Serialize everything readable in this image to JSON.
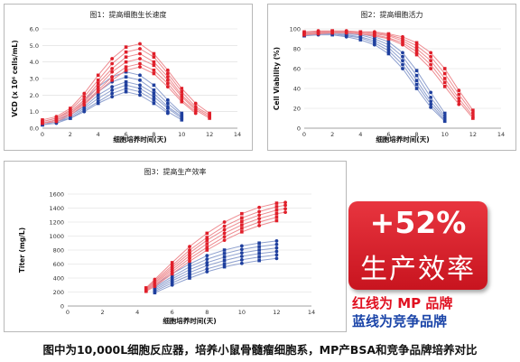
{
  "colors": {
    "red": "#e01f2a",
    "blue": "#1f3f9e",
    "red_line": "#ee8a8f",
    "blue_line": "#8ea0cf"
  },
  "chart_data": [
    {
      "type": "line",
      "title": "图1：提高细胞生长速度",
      "xlabel": "细胞培养时间(天)",
      "ylabel": "VCD (x 10⁶ cells/mL)",
      "xlim": [
        0,
        14
      ],
      "ylim": [
        0,
        6
      ],
      "xticks": [
        "0",
        "2",
        "4",
        "6",
        "8",
        "10",
        "12",
        "14"
      ],
      "yticks": [
        "0.0",
        "1.0",
        "2.0",
        "3.0",
        "4.0",
        "5.0",
        "6.0"
      ],
      "series": [
        {
          "group": "red",
          "x": [
            0,
            1,
            2,
            3,
            4,
            5,
            6,
            7,
            8,
            9,
            10,
            11,
            12
          ],
          "y": [
            0.5,
            0.7,
            1.2,
            2.1,
            3.2,
            4.2,
            4.9,
            5.1,
            4.5,
            3.5,
            2.4,
            1.5,
            0.9
          ]
        },
        {
          "group": "red",
          "x": [
            0,
            1,
            2,
            3,
            4,
            5,
            6,
            7,
            8,
            9,
            10,
            11,
            12
          ],
          "y": [
            0.4,
            0.6,
            1.1,
            1.9,
            2.9,
            3.9,
            4.6,
            4.8,
            4.3,
            3.3,
            2.2,
            1.3,
            0.8
          ]
        },
        {
          "group": "red",
          "x": [
            0,
            1,
            2,
            3,
            4,
            5,
            6,
            7,
            8,
            9,
            10,
            11,
            12
          ],
          "y": [
            0.4,
            0.6,
            1.0,
            1.7,
            2.7,
            3.6,
            4.3,
            4.5,
            4.0,
            3.1,
            2.0,
            1.2,
            0.7
          ]
        },
        {
          "group": "red",
          "x": [
            0,
            1,
            2,
            3,
            4,
            5,
            6,
            7,
            8,
            9,
            10,
            11,
            12
          ],
          "y": [
            0.3,
            0.5,
            0.9,
            1.6,
            2.5,
            3.4,
            4.0,
            4.2,
            3.8,
            2.9,
            1.9,
            1.1,
            0.6
          ]
        },
        {
          "group": "red",
          "x": [
            0,
            1,
            2,
            3,
            4,
            5,
            6,
            7,
            8,
            9,
            10,
            11
          ],
          "y": [
            0.3,
            0.5,
            0.9,
            1.5,
            2.3,
            3.1,
            3.7,
            3.9,
            3.5,
            2.7,
            1.7,
            1.0
          ]
        },
        {
          "group": "red",
          "x": [
            0,
            1,
            2,
            3,
            4,
            5,
            6,
            7,
            8,
            9,
            10,
            11
          ],
          "y": [
            0.3,
            0.4,
            0.8,
            1.4,
            2.2,
            2.9,
            3.5,
            3.7,
            3.3,
            2.5,
            1.6,
            0.9
          ]
        },
        {
          "group": "blue",
          "x": [
            0,
            1,
            2,
            3,
            4,
            5,
            6,
            7,
            8,
            9,
            10
          ],
          "y": [
            0.4,
            0.6,
            1.0,
            1.7,
            2.5,
            3.1,
            3.4,
            3.2,
            2.6,
            1.7,
            0.9
          ]
        },
        {
          "group": "blue",
          "x": [
            0,
            1,
            2,
            3,
            4,
            5,
            6,
            7,
            8,
            9,
            10
          ],
          "y": [
            0.3,
            0.5,
            0.9,
            1.5,
            2.2,
            2.8,
            3.1,
            2.9,
            2.3,
            1.5,
            0.8
          ]
        },
        {
          "group": "blue",
          "x": [
            0,
            1,
            2,
            3,
            4,
            5,
            6,
            7,
            8,
            9,
            10
          ],
          "y": [
            0.3,
            0.5,
            0.8,
            1.3,
            2.0,
            2.5,
            2.8,
            2.6,
            2.1,
            1.3,
            0.7
          ]
        },
        {
          "group": "blue",
          "x": [
            0,
            1,
            2,
            3,
            4,
            5,
            6,
            7,
            8,
            9,
            10
          ],
          "y": [
            0.3,
            0.4,
            0.7,
            1.2,
            1.8,
            2.3,
            2.6,
            2.4,
            1.9,
            1.2,
            0.6
          ]
        },
        {
          "group": "blue",
          "x": [
            0,
            1,
            2,
            3,
            4,
            5,
            6,
            7,
            8,
            9,
            10
          ],
          "y": [
            0.2,
            0.4,
            0.6,
            1.1,
            1.6,
            2.1,
            2.4,
            2.2,
            1.7,
            1.0,
            0.5
          ]
        },
        {
          "group": "blue",
          "x": [
            0,
            1,
            2,
            3,
            4,
            5,
            6,
            7,
            8,
            9
          ],
          "y": [
            0.2,
            0.3,
            0.6,
            1.0,
            1.5,
            1.9,
            2.2,
            2.0,
            1.5,
            0.9
          ]
        }
      ]
    },
    {
      "type": "line",
      "title": "图2：提高细胞活力",
      "xlabel": "细胞培养时间(天)",
      "ylabel": "Cell Viability (%)",
      "xlim": [
        0,
        14
      ],
      "ylim": [
        0,
        100
      ],
      "xticks": [
        "0",
        "2",
        "4",
        "6",
        "8",
        "10",
        "12",
        "14"
      ],
      "yticks": [
        "0",
        "20",
        "40",
        "60",
        "80",
        "100"
      ],
      "series": [
        {
          "group": "red",
          "x": [
            0,
            1,
            2,
            3,
            4,
            5,
            6,
            7,
            8,
            9,
            10,
            11,
            12
          ],
          "y": [
            97,
            98,
            98,
            98,
            97,
            97,
            95,
            92,
            86,
            76,
            60,
            38,
            18
          ]
        },
        {
          "group": "red",
          "x": [
            0,
            1,
            2,
            3,
            4,
            5,
            6,
            7,
            8,
            9,
            10,
            11,
            12
          ],
          "y": [
            96,
            97,
            98,
            97,
            97,
            96,
            94,
            90,
            83,
            72,
            55,
            34,
            15
          ]
        },
        {
          "group": "red",
          "x": [
            0,
            1,
            2,
            3,
            4,
            5,
            6,
            7,
            8,
            9,
            10,
            11,
            12
          ],
          "y": [
            95,
            96,
            97,
            97,
            96,
            95,
            93,
            88,
            80,
            68,
            50,
            30,
            12
          ]
        },
        {
          "group": "red",
          "x": [
            0,
            1,
            2,
            3,
            4,
            5,
            6,
            7,
            8,
            9,
            10,
            11,
            12
          ],
          "y": [
            94,
            96,
            96,
            96,
            95,
            94,
            91,
            86,
            77,
            64,
            46,
            27,
            10
          ]
        },
        {
          "group": "red",
          "x": [
            0,
            1,
            2,
            3,
            4,
            5,
            6,
            7,
            8,
            9,
            10,
            11
          ],
          "y": [
            94,
            95,
            96,
            96,
            95,
            93,
            90,
            84,
            74,
            60,
            42,
            24
          ]
        },
        {
          "group": "blue",
          "x": [
            0,
            1,
            2,
            3,
            4,
            5,
            6,
            7,
            8,
            9,
            10
          ],
          "y": [
            96,
            97,
            97,
            96,
            95,
            92,
            87,
            76,
            58,
            36,
            15
          ]
        },
        {
          "group": "blue",
          "x": [
            0,
            1,
            2,
            3,
            4,
            5,
            6,
            7,
            8,
            9,
            10
          ],
          "y": [
            95,
            96,
            96,
            95,
            94,
            90,
            84,
            72,
            53,
            31,
            12
          ]
        },
        {
          "group": "blue",
          "x": [
            0,
            1,
            2,
            3,
            4,
            5,
            6,
            7,
            8,
            9,
            10
          ],
          "y": [
            94,
            95,
            95,
            94,
            92,
            88,
            81,
            68,
            48,
            27,
            10
          ]
        },
        {
          "group": "blue",
          "x": [
            0,
            1,
            2,
            3,
            4,
            5,
            6,
            7,
            8,
            9,
            10
          ],
          "y": [
            93,
            95,
            95,
            93,
            91,
            86,
            78,
            64,
            44,
            24,
            8
          ]
        },
        {
          "group": "blue",
          "x": [
            0,
            1,
            2,
            3,
            4,
            5,
            6,
            7,
            8,
            9,
            10
          ],
          "y": [
            93,
            94,
            94,
            92,
            89,
            84,
            75,
            60,
            40,
            21,
            7
          ]
        }
      ]
    },
    {
      "type": "line",
      "title": "图3：提高生产效率",
      "xlabel": "细胞培养时间(天)",
      "ylabel": "Titer (mg/L)",
      "xlim": [
        0,
        14
      ],
      "ylim": [
        0,
        1600
      ],
      "xticks": [
        "0",
        "2",
        "4",
        "6",
        "8",
        "10",
        "12",
        "14"
      ],
      "yticks": [
        "0",
        "200",
        "400",
        "600",
        "800",
        "1000",
        "1200",
        "1400",
        "1600"
      ],
      "series": [
        {
          "group": "red",
          "x": [
            4.5,
            5,
            6,
            7,
            8,
            9,
            10,
            11,
            12,
            12.5
          ],
          "y": [
            260,
            380,
            620,
            850,
            1040,
            1200,
            1320,
            1410,
            1470,
            1480
          ]
        },
        {
          "group": "red",
          "x": [
            4.5,
            5,
            6,
            7,
            8,
            9,
            10,
            11,
            12,
            12.5
          ],
          "y": [
            250,
            360,
            580,
            800,
            980,
            1140,
            1260,
            1350,
            1420,
            1440
          ]
        },
        {
          "group": "red",
          "x": [
            4.5,
            5,
            6,
            7,
            8,
            9,
            10,
            11,
            12,
            12.5
          ],
          "y": [
            240,
            340,
            550,
            760,
            940,
            1090,
            1210,
            1300,
            1370,
            1390
          ]
        },
        {
          "group": "red",
          "x": [
            4.5,
            5,
            6,
            7,
            8,
            9,
            10,
            11,
            12,
            12.5
          ],
          "y": [
            230,
            320,
            520,
            720,
            890,
            1040,
            1160,
            1250,
            1320,
            1340
          ]
        },
        {
          "group": "red",
          "x": [
            4.5,
            5,
            6,
            7,
            8,
            9,
            10,
            11,
            12
          ],
          "y": [
            220,
            300,
            490,
            680,
            840,
            990,
            1110,
            1200,
            1270
          ]
        },
        {
          "group": "red",
          "x": [
            4.5,
            5,
            6,
            7,
            8,
            9,
            10,
            11,
            12
          ],
          "y": [
            210,
            280,
            460,
            640,
            800,
            940,
            1060,
            1150,
            1220
          ]
        },
        {
          "group": "blue",
          "x": [
            5,
            6,
            7,
            8,
            9,
            10,
            11,
            12
          ],
          "y": [
            300,
            460,
            600,
            720,
            800,
            860,
            900,
            930
          ]
        },
        {
          "group": "blue",
          "x": [
            5,
            6,
            7,
            8,
            9,
            10,
            11,
            12
          ],
          "y": [
            270,
            420,
            560,
            670,
            750,
            810,
            850,
            880
          ]
        },
        {
          "group": "blue",
          "x": [
            5,
            6,
            7,
            8,
            9,
            10,
            11,
            12
          ],
          "y": [
            250,
            390,
            520,
            620,
            700,
            760,
            800,
            830
          ]
        },
        {
          "group": "blue",
          "x": [
            5,
            6,
            7,
            8,
            9,
            10,
            11,
            12
          ],
          "y": [
            230,
            360,
            480,
            580,
            650,
            710,
            750,
            780
          ]
        },
        {
          "group": "blue",
          "x": [
            5,
            6,
            7,
            8,
            9,
            10,
            11,
            12
          ],
          "y": [
            210,
            330,
            440,
            530,
            600,
            660,
            700,
            730
          ]
        },
        {
          "group": "blue",
          "x": [
            5,
            6,
            7,
            8,
            9,
            10,
            11,
            12
          ],
          "y": [
            190,
            300,
            400,
            490,
            560,
            610,
            650,
            680
          ]
        }
      ]
    }
  ],
  "badge": {
    "percent": "+52%",
    "label": "生产效率"
  },
  "legend": {
    "red": "红线为 MP 品牌",
    "blue": "蓝线为竞争品牌"
  },
  "caption": "图中为10,000L细胞反应器，培养小鼠骨髓瘤细胞系，MP产BSA和竞争品牌培养对比"
}
